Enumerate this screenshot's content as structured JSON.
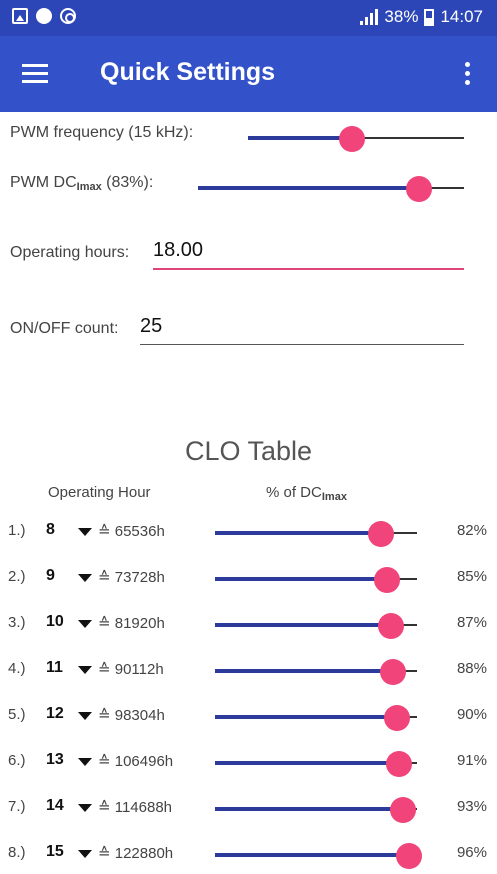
{
  "status_bar": {
    "icons_left": [
      "image-icon",
      "compass-icon",
      "sync-icon"
    ],
    "battery": "38%",
    "battery_level": 0.38,
    "time": "14:07"
  },
  "app_bar": {
    "title": "Quick Settings"
  },
  "settings": {
    "pwm_frequency": {
      "label": "PWM frequency (15 kHz):",
      "value_fraction": 0.48
    },
    "pwm_dc": {
      "label_main": "PWM DC",
      "label_sub": "Imax",
      "label_suffix": " (83%):",
      "value_fraction": 0.83
    },
    "operating_hours": {
      "label": "Operating hours:",
      "value": "18.00"
    },
    "onoff_count": {
      "label": "ON/OFF count:",
      "value": "25"
    }
  },
  "clo_table": {
    "title": "CLO Table",
    "col_operating_hour": "Operating Hour",
    "col_percent_main": "% of DC",
    "col_percent_sub": "Imax",
    "rows": [
      {
        "index": "1.)",
        "value": "8",
        "hours": "≙ 65536h",
        "percent": "82%",
        "fraction": 0.82
      },
      {
        "index": "2.)",
        "value": "9",
        "hours": "≙ 73728h",
        "percent": "85%",
        "fraction": 0.85
      },
      {
        "index": "3.)",
        "value": "10",
        "hours": "≙ 81920h",
        "percent": "87%",
        "fraction": 0.87
      },
      {
        "index": "4.)",
        "value": "11",
        "hours": "≙ 90112h",
        "percent": "88%",
        "fraction": 0.88
      },
      {
        "index": "5.)",
        "value": "12",
        "hours": "≙ 98304h",
        "percent": "90%",
        "fraction": 0.9
      },
      {
        "index": "6.)",
        "value": "13",
        "hours": "≙ 106496h",
        "percent": "91%",
        "fraction": 0.91
      },
      {
        "index": "7.)",
        "value": "14",
        "hours": "≙ 114688h",
        "percent": "93%",
        "fraction": 0.93
      },
      {
        "index": "8.)",
        "value": "15",
        "hours": "≙ 122880h",
        "percent": "96%",
        "fraction": 0.96
      }
    ]
  },
  "colors": {
    "status_bar": "#2c46b8",
    "app_bar": "#3351c9",
    "slider_fill": "#2b3a9b",
    "thumb": "#f0447a",
    "active_underline": "#e0457a"
  }
}
